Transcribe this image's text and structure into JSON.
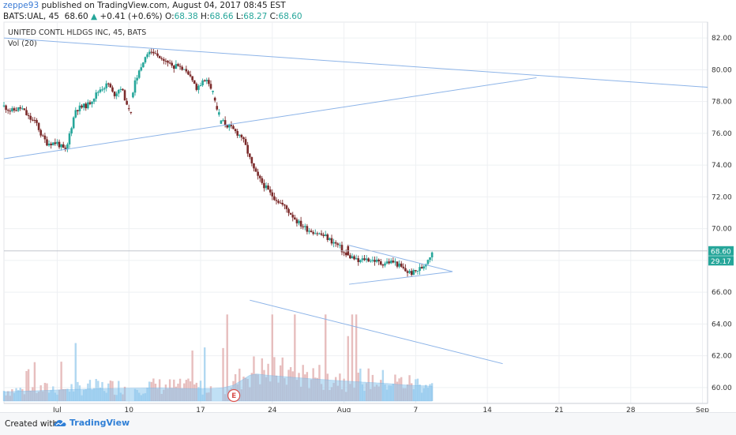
{
  "header": {
    "author": "zeppe93",
    "published_text": "published on TradingView.com, August 04, 2017 08:45 EST",
    "symbol": "BATS:UAL, 45",
    "last": "68.60",
    "change": "+0.41 (+0.6%)",
    "o_label": "O:",
    "o_value": "68.38",
    "h_label": "H:",
    "h_value": "68.66",
    "l_label": "L:",
    "l_value": "68.27",
    "c_label": "C:",
    "c_value": "68.60"
  },
  "footer": {
    "created_with": "Created with",
    "brand": "TradingView"
  },
  "colors": {
    "up": "#26a69a",
    "down": "#7b2a2a",
    "trendline": "#8db4e8",
    "volume_area": "#8ec7ee",
    "volume_bar_up": "#a8d4ef",
    "volume_bar_down": "#e4b7b7",
    "price_label_bg": "#26a69a",
    "brand": "#2f7fd6"
  },
  "chart_data": {
    "type": "candlestick",
    "title": "UNITED CONTL HLDGS INC, 45, BATS",
    "indicator_label": "Vol (20)",
    "x_tick_labels": [
      "Jul",
      "10",
      "17",
      "24",
      "Aug",
      "7",
      "14",
      "21",
      "28",
      "Sep"
    ],
    "y_tick_labels": [
      "82.00",
      "80.00",
      "78.00",
      "76.00",
      "74.00",
      "72.00",
      "70.00",
      "68.00",
      "66.00",
      "64.00",
      "62.00",
      "60.00"
    ],
    "ylim": [
      59,
      83
    ],
    "x_range_days": [
      -5.2,
      63.5
    ],
    "last_price": "68.60",
    "volume_ma_label": "29.17",
    "earnings_marker": "E",
    "earnings_day": 17.25,
    "price_path": [
      [
        -5.2,
        77.7
      ],
      [
        -4.5,
        77.4
      ],
      [
        -3.5,
        77.6
      ],
      [
        -2.8,
        77.0
      ],
      [
        -2,
        76.6
      ],
      [
        -1.5,
        75.8
      ],
      [
        -1,
        75.4
      ],
      [
        0,
        75.4
      ],
      [
        0.6,
        75.0
      ],
      [
        0.9,
        74.8
      ],
      [
        1.1,
        75.7
      ],
      [
        1.8,
        77.5
      ],
      [
        3,
        77.8
      ],
      [
        4.2,
        78.8
      ],
      [
        5,
        79.1
      ],
      [
        5.5,
        78.4
      ],
      [
        6.2,
        78.9
      ],
      [
        6.8,
        77.9
      ],
      [
        7.2,
        77.2
      ],
      [
        7.5,
        79.0
      ],
      [
        8.2,
        80.3
      ],
      [
        9,
        81.2
      ],
      [
        10,
        80.9
      ],
      [
        10.8,
        80.4
      ],
      [
        11.5,
        80.2
      ],
      [
        12.2,
        80.1
      ],
      [
        13,
        79.5
      ],
      [
        13.6,
        78.9
      ],
      [
        14.3,
        79.3
      ],
      [
        14.9,
        79.2
      ],
      [
        16,
        76.8
      ],
      [
        17,
        76.3
      ],
      [
        18,
        75.8
      ],
      [
        18.5,
        75.0
      ],
      [
        19,
        74.0
      ],
      [
        19.5,
        73.3
      ],
      [
        20.1,
        72.8
      ],
      [
        20.8,
        72.2
      ],
      [
        21.5,
        71.8
      ],
      [
        22.3,
        71.3
      ],
      [
        23,
        70.8
      ],
      [
        23.5,
        70.4
      ],
      [
        24.3,
        70.0
      ],
      [
        25.1,
        69.8
      ],
      [
        26.2,
        69.5
      ],
      [
        26.8,
        69.2
      ],
      [
        27.5,
        68.9
      ],
      [
        28.2,
        68.3
      ],
      [
        28.8,
        68.2
      ],
      [
        29.4,
        67.9
      ],
      [
        30,
        68.1
      ],
      [
        31,
        68.0
      ],
      [
        31.6,
        67.8
      ],
      [
        32.3,
        67.9
      ],
      [
        32.9,
        67.9
      ],
      [
        33.5,
        67.6
      ],
      [
        34.1,
        67.3
      ],
      [
        34.7,
        67.2
      ],
      [
        35.2,
        67.4
      ],
      [
        35.7,
        67.6
      ],
      [
        36.1,
        68.0
      ],
      [
        36.4,
        68.3
      ],
      [
        36.6,
        68.6
      ]
    ],
    "volume_baseline": [
      [
        -5.2,
        0.32
      ],
      [
        -2,
        0.36
      ],
      [
        1,
        0.4
      ],
      [
        4,
        0.43
      ],
      [
        7,
        0.45
      ],
      [
        10,
        0.46
      ],
      [
        12,
        0.44
      ],
      [
        14,
        0.43
      ],
      [
        16,
        0.45
      ],
      [
        17.2,
        0.55
      ],
      [
        18,
        0.72
      ],
      [
        18.8,
        0.9
      ],
      [
        19.5,
        0.95
      ],
      [
        20.5,
        0.9
      ],
      [
        22,
        0.86
      ],
      [
        24,
        0.8
      ],
      [
        26,
        0.75
      ],
      [
        28,
        0.7
      ],
      [
        30,
        0.66
      ],
      [
        32,
        0.62
      ],
      [
        34,
        0.56
      ],
      [
        36.6,
        0.52
      ]
    ],
    "trendlines": [
      {
        "from": [
          -5.2,
          82.0
        ],
        "to": [
          63.5,
          78.9
        ]
      },
      {
        "from": [
          -5.2,
          74.4
        ],
        "to": [
          46.8,
          79.5
        ]
      },
      {
        "from": [
          18.8,
          65.5
        ],
        "to": [
          43.5,
          61.5
        ]
      },
      {
        "from": [
          28.5,
          68.95
        ],
        "to": [
          38.6,
          67.3
        ]
      },
      {
        "from": [
          28.5,
          66.5
        ],
        "to": [
          38.6,
          67.3
        ]
      }
    ],
    "grid": true
  }
}
